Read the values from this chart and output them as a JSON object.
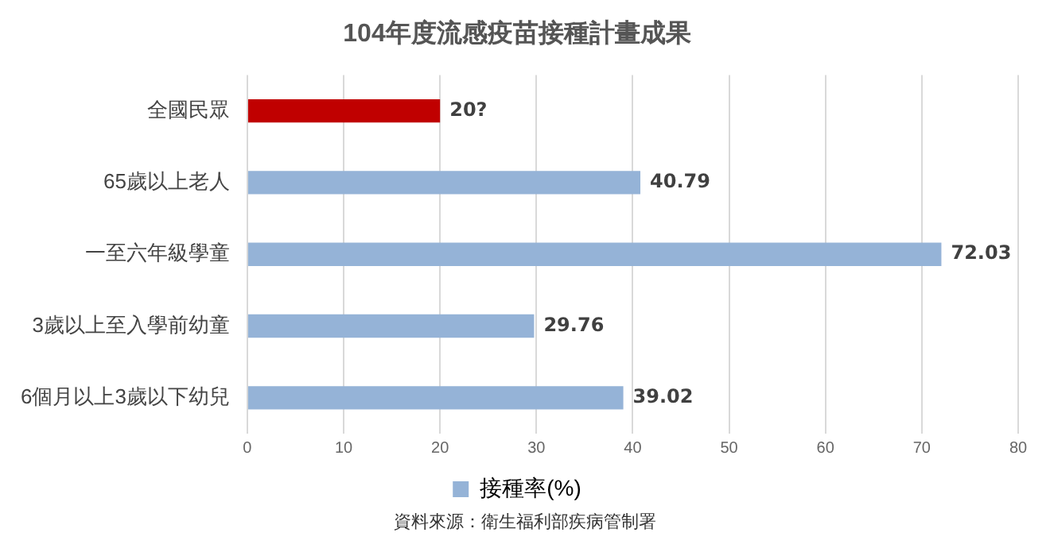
{
  "chart_data": {
    "type": "bar",
    "orientation": "horizontal",
    "title": "104年度流感疫苗接種計畫成果",
    "categories": [
      "全國民眾",
      "65歲以上老人",
      "一至六年級學童",
      "3歲以上至入學前幼童",
      "6個月以上3歲以下幼兒"
    ],
    "series": [
      {
        "name": "接種率(%)",
        "color": "#95b3d7",
        "colors": [
          "#c00000",
          "#95b3d7",
          "#95b3d7",
          "#95b3d7",
          "#95b3d7"
        ],
        "values": [
          20,
          40.79,
          72.03,
          29.76,
          39.02
        ],
        "value_labels": [
          "20?",
          "40.79",
          "72.03",
          "29.76",
          "39.02"
        ]
      }
    ],
    "xlim": [
      0,
      80
    ],
    "xticks": [
      0,
      10,
      20,
      30,
      40,
      50,
      60,
      70,
      80
    ],
    "grid": "x",
    "legend": "bottom",
    "annotations": [
      "資料來源：衛生福利部疾病管制署"
    ]
  }
}
